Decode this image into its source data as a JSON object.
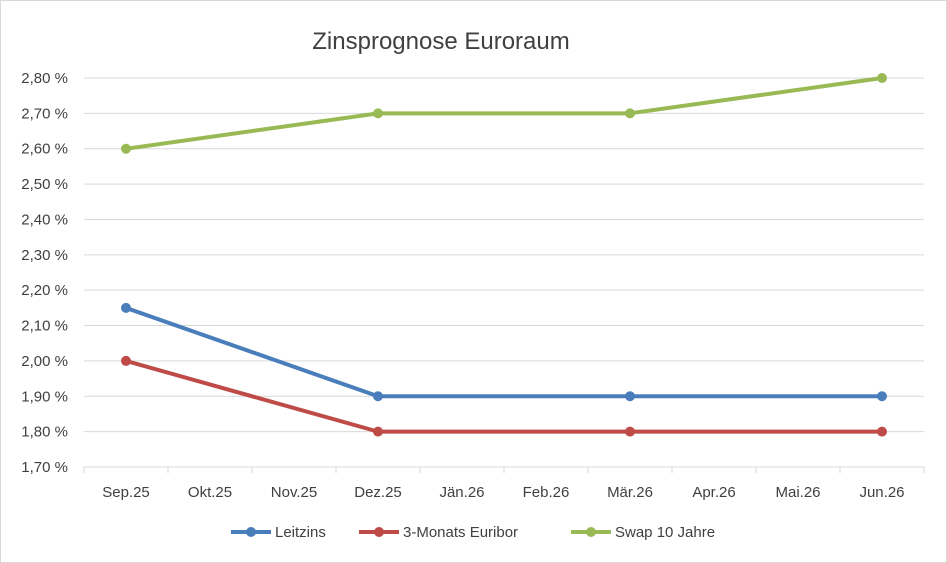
{
  "chart_data": {
    "type": "line",
    "title": "Zinsprognose Euroraum",
    "xlabel": "",
    "ylabel": "",
    "categories": [
      "Sep.25",
      "Okt.25",
      "Nov.25",
      "Dez.25",
      "Jän.26",
      "Feb.26",
      "Mär.26",
      "Apr.26",
      "Mai.26",
      "Jun.26"
    ],
    "ylim": [
      1.7,
      2.8
    ],
    "y_ticks": [
      1.7,
      1.8,
      1.9,
      2.0,
      2.1,
      2.2,
      2.3,
      2.4,
      2.5,
      2.6,
      2.7,
      2.8
    ],
    "y_tick_labels": [
      "1,70 %",
      "1,80 %",
      "1,90 %",
      "2,00 %",
      "2,10 %",
      "2,20 %",
      "2,30 %",
      "2,40 %",
      "2,50 %",
      "2,60 %",
      "2,70 %",
      "2,80 %"
    ],
    "grid": true,
    "legend_position": "bottom",
    "series": [
      {
        "name": "Leitzins",
        "color": "#4a7ebb",
        "points": [
          {
            "x": "Sep.25",
            "y": 2.15
          },
          {
            "x": "Dez.25",
            "y": 1.9
          },
          {
            "x": "Mär.26",
            "y": 1.9
          },
          {
            "x": "Jun.26",
            "y": 1.9
          }
        ]
      },
      {
        "name": "3-Monats Euribor",
        "color": "#be4b48",
        "points": [
          {
            "x": "Sep.25",
            "y": 2.0
          },
          {
            "x": "Dez.25",
            "y": 1.8
          },
          {
            "x": "Mär.26",
            "y": 1.8
          },
          {
            "x": "Jun.26",
            "y": 1.8
          }
        ]
      },
      {
        "name": "Swap 10 Jahre",
        "color": "#98b954",
        "points": [
          {
            "x": "Sep.25",
            "y": 2.6
          },
          {
            "x": "Dez.25",
            "y": 2.7
          },
          {
            "x": "Mär.26",
            "y": 2.7
          },
          {
            "x": "Jun.26",
            "y": 2.8
          }
        ]
      }
    ]
  }
}
